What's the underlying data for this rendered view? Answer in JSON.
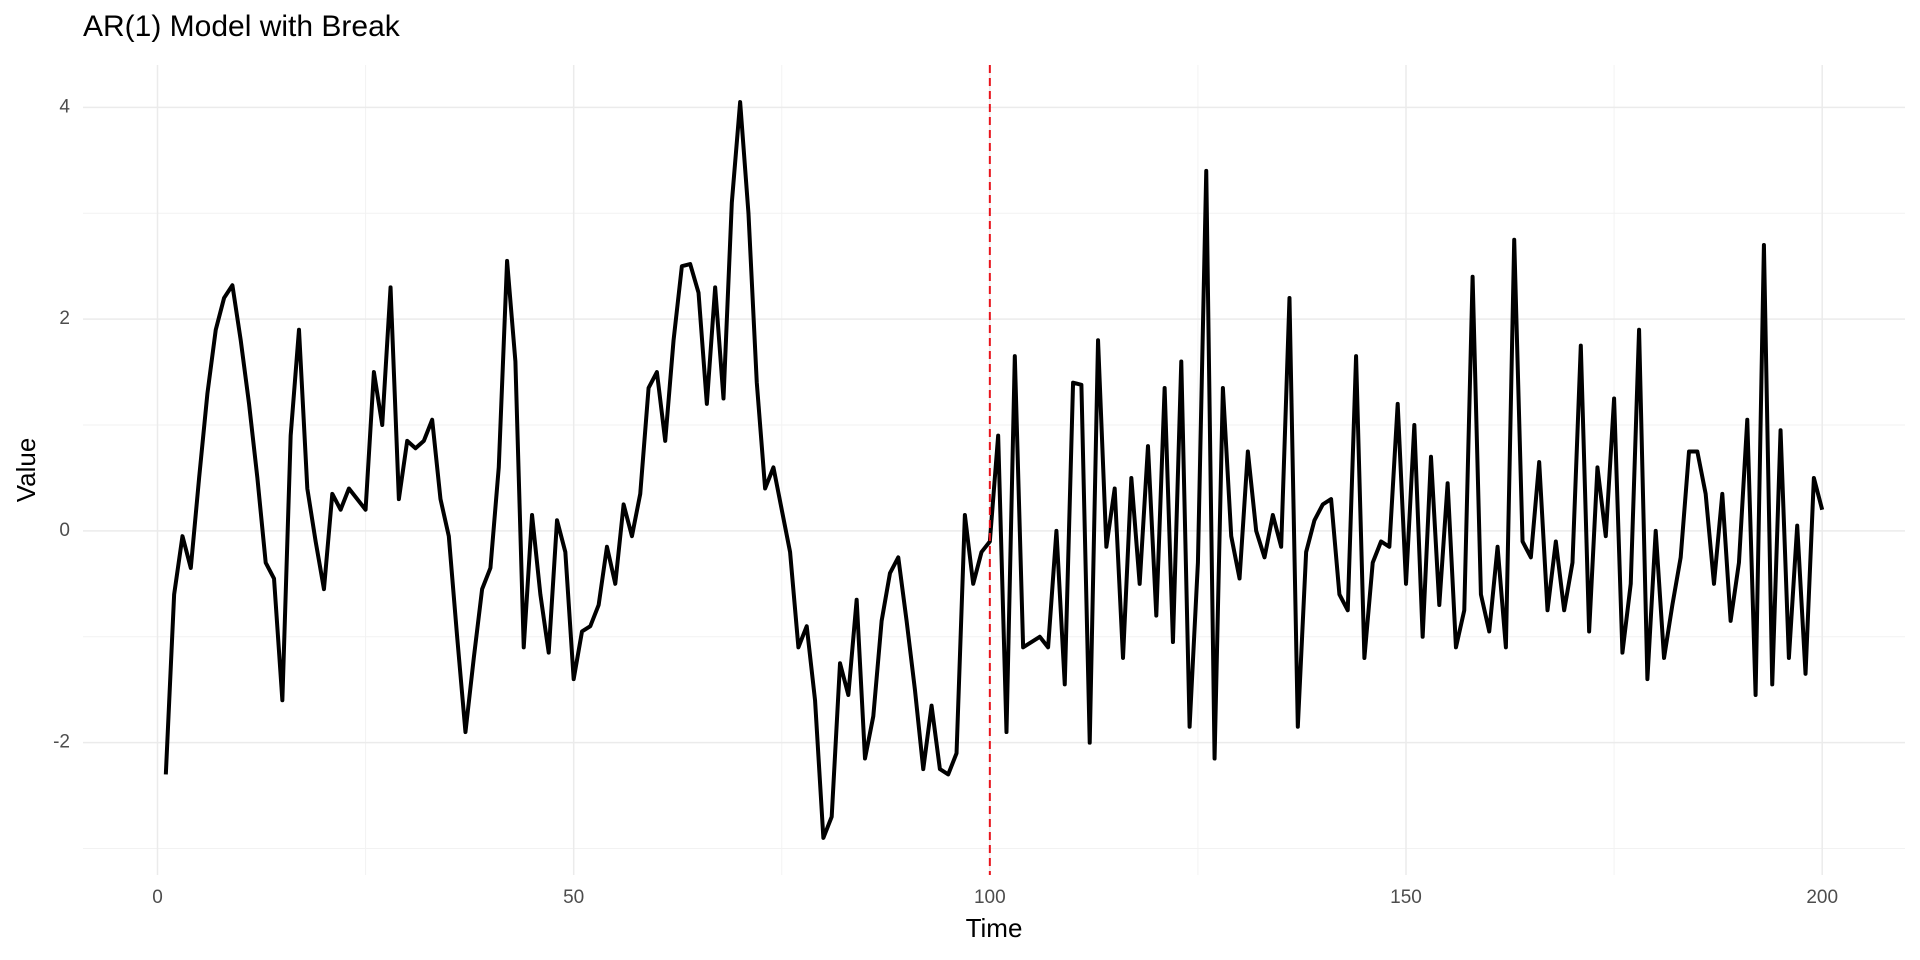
{
  "chart_data": {
    "type": "line",
    "title": "AR(1) Model with Break",
    "x_label": "Time",
    "y_label": "Value",
    "x": [
      1,
      2,
      3,
      4,
      5,
      6,
      7,
      8,
      9,
      10,
      11,
      12,
      13,
      14,
      15,
      16,
      17,
      18,
      19,
      20,
      21,
      22,
      23,
      24,
      25,
      26,
      27,
      28,
      29,
      30,
      31,
      32,
      33,
      34,
      35,
      36,
      37,
      38,
      39,
      40,
      41,
      42,
      43,
      44,
      45,
      46,
      47,
      48,
      49,
      50,
      51,
      52,
      53,
      54,
      55,
      56,
      57,
      58,
      59,
      60,
      61,
      62,
      63,
      64,
      65,
      66,
      67,
      68,
      69,
      70,
      71,
      72,
      73,
      74,
      75,
      76,
      77,
      78,
      79,
      80,
      81,
      82,
      83,
      84,
      85,
      86,
      87,
      88,
      89,
      90,
      91,
      92,
      93,
      94,
      95,
      96,
      97,
      98,
      99,
      100,
      101,
      102,
      103,
      104,
      105,
      106,
      107,
      108,
      109,
      110,
      111,
      112,
      113,
      114,
      115,
      116,
      117,
      118,
      119,
      120,
      121,
      122,
      123,
      124,
      125,
      126,
      127,
      128,
      129,
      130,
      131,
      132,
      133,
      134,
      135,
      136,
      137,
      138,
      139,
      140,
      141,
      142,
      143,
      144,
      145,
      146,
      147,
      148,
      149,
      150,
      151,
      152,
      153,
      154,
      155,
      156,
      157,
      158,
      159,
      160,
      161,
      162,
      163,
      164,
      165,
      166,
      167,
      168,
      169,
      170,
      171,
      172,
      173,
      174,
      175,
      176,
      177,
      178,
      179,
      180,
      181,
      182,
      183,
      184,
      185,
      186,
      187,
      188,
      189,
      190,
      191,
      192,
      193,
      194,
      195,
      196,
      197,
      198,
      199,
      200
    ],
    "values": [
      -2.3,
      -0.6,
      -0.05,
      -0.35,
      0.5,
      1.3,
      1.9,
      2.2,
      2.32,
      1.8,
      1.2,
      0.5,
      -0.3,
      -0.45,
      -1.6,
      0.9,
      1.9,
      0.4,
      -0.1,
      -0.55,
      0.35,
      0.2,
      0.4,
      0.3,
      0.2,
      1.5,
      1.0,
      2.3,
      0.3,
      0.85,
      0.78,
      0.85,
      1.05,
      0.3,
      -0.05,
      -1.0,
      -1.9,
      -1.2,
      -0.55,
      -0.35,
      0.6,
      2.55,
      1.6,
      -1.1,
      0.15,
      -0.6,
      -1.15,
      0.1,
      -0.2,
      -1.4,
      -0.95,
      -0.9,
      -0.7,
      -0.15,
      -0.5,
      0.25,
      -0.05,
      0.35,
      1.35,
      1.5,
      0.85,
      1.8,
      2.5,
      2.52,
      2.25,
      1.2,
      2.3,
      1.25,
      3.1,
      4.05,
      3.0,
      1.4,
      0.4,
      0.6,
      0.2,
      -0.2,
      -1.1,
      -0.9,
      -1.6,
      -2.9,
      -2.7,
      -1.25,
      -1.55,
      -0.65,
      -2.15,
      -1.75,
      -0.85,
      -0.4,
      -0.25,
      -0.85,
      -1.5,
      -2.25,
      -1.65,
      -2.25,
      -2.3,
      -2.1,
      0.15,
      -0.5,
      -0.2,
      -0.1,
      0.9,
      -1.9,
      1.65,
      -1.1,
      -1.05,
      -1.0,
      -1.1,
      0.0,
      -1.45,
      1.4,
      1.38,
      -2.0,
      1.8,
      -0.15,
      0.4,
      -1.2,
      0.5,
      -0.5,
      0.8,
      -0.8,
      1.35,
      -1.05,
      1.6,
      -1.85,
      -0.3,
      3.4,
      -2.15,
      1.35,
      -0.05,
      -0.45,
      0.75,
      0.0,
      -0.25,
      0.15,
      -0.15,
      2.2,
      -1.85,
      -0.2,
      0.1,
      0.25,
      0.3,
      -0.6,
      -0.75,
      1.65,
      -1.2,
      -0.3,
      -0.1,
      -0.15,
      1.2,
      -0.5,
      1.0,
      -1.0,
      0.7,
      -0.7,
      0.45,
      -1.1,
      -0.75,
      2.4,
      -0.6,
      -0.95,
      -0.15,
      -1.1,
      2.75,
      -0.1,
      -0.25,
      0.65,
      -0.75,
      -0.1,
      -0.75,
      -0.3,
      1.75,
      -0.95,
      0.6,
      -0.05,
      1.25,
      -1.15,
      -0.5,
      1.9,
      -1.4,
      0.0,
      -1.2,
      -0.7,
      -0.25,
      0.75,
      0.75,
      0.35,
      -0.5,
      0.35,
      -0.85,
      -0.3,
      1.05,
      -1.55,
      2.7,
      -1.45,
      0.95,
      -1.2,
      0.05,
      -1.35,
      0.5,
      0.2
    ],
    "color": "#000000",
    "break_line": {
      "x": 100,
      "color": "#e8141c",
      "dashed": true
    },
    "xlim": [
      -8.95,
      209.95
    ],
    "ylim": [
      -3.25,
      4.4
    ],
    "xticks": [
      0,
      50,
      100,
      150,
      200
    ],
    "yticks": [
      -2,
      0,
      2,
      4
    ],
    "x_minor_grid": [
      25,
      75,
      125,
      175
    ],
    "y_minor_grid": [
      -3,
      -1,
      1,
      3
    ],
    "grid": true
  }
}
